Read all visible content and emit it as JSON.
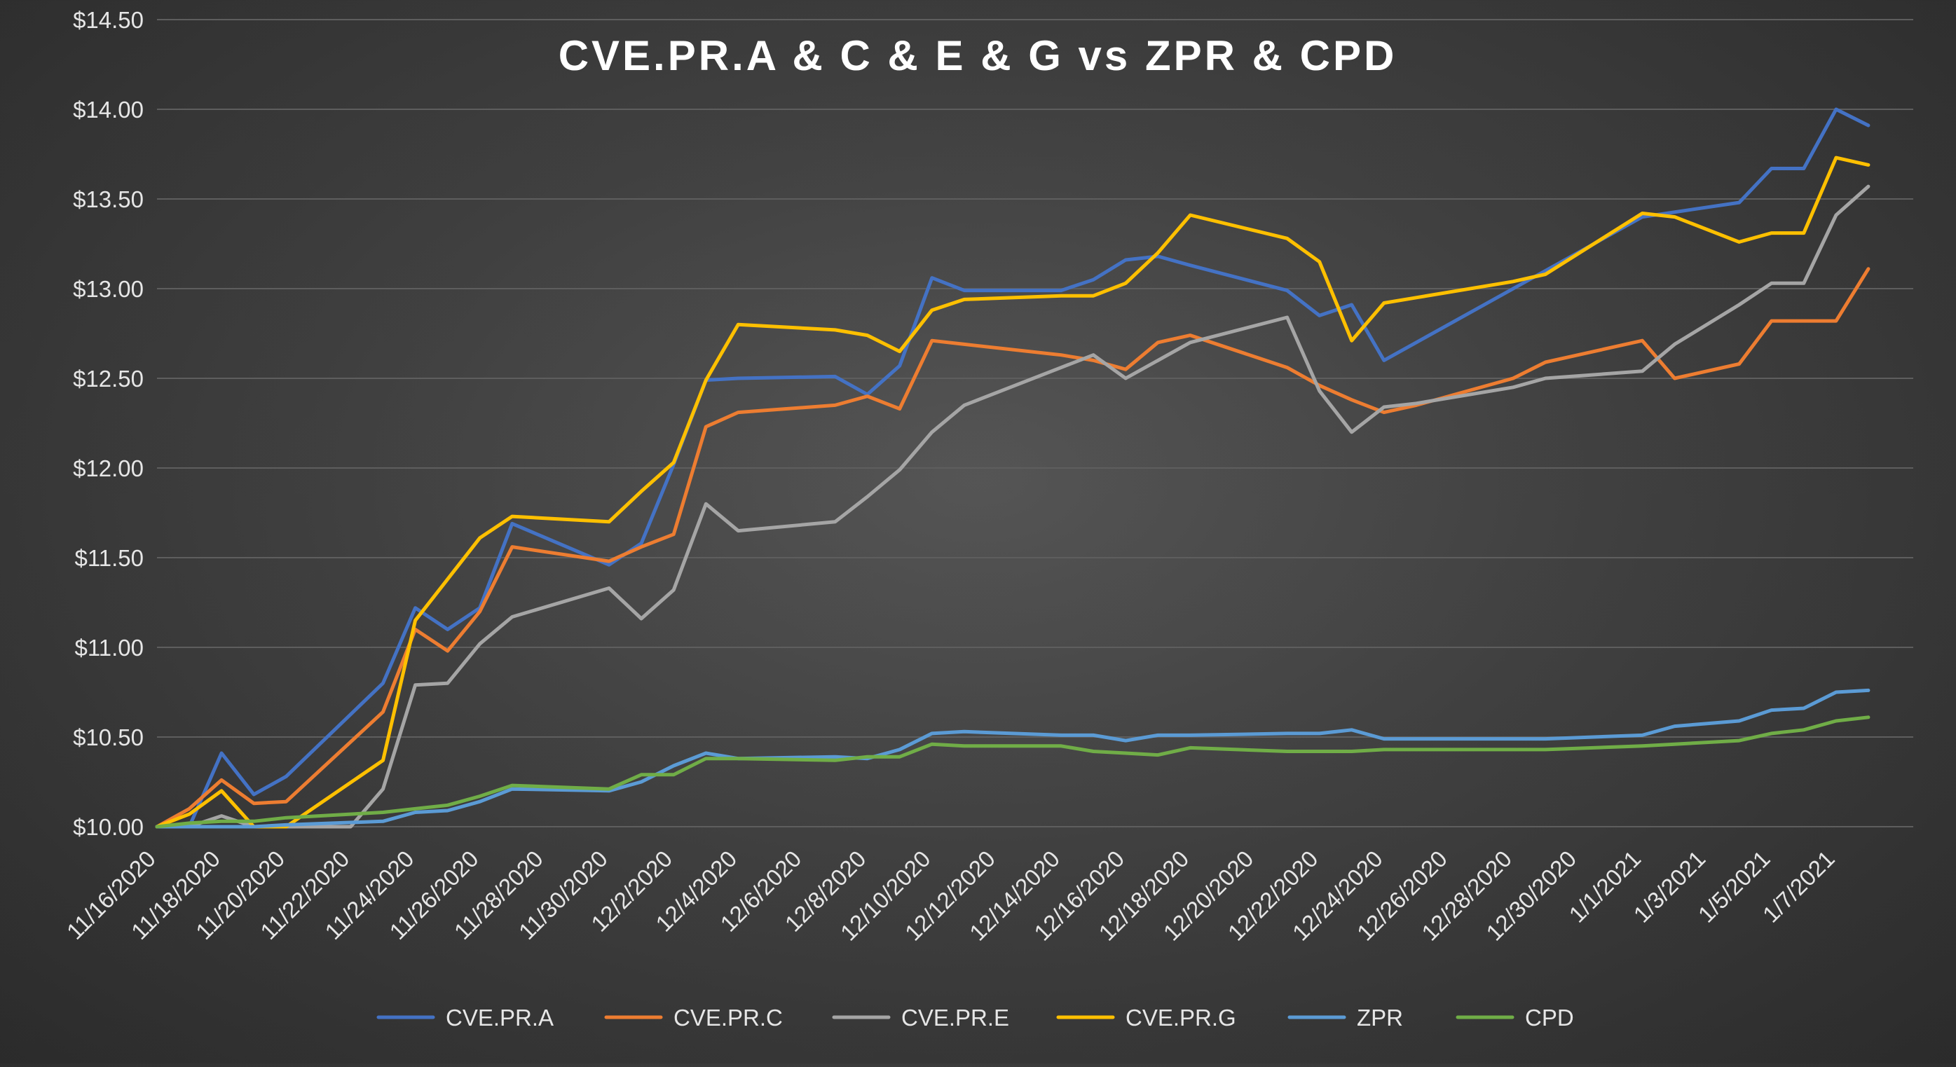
{
  "chart_data": {
    "type": "line",
    "title": "CVE.PR.A & C & E & G vs ZPR & CPD",
    "xlabel": "",
    "ylabel": "",
    "ylim": [
      10.0,
      14.5
    ],
    "y_tick_values": [
      10.0,
      10.5,
      11.0,
      11.5,
      12.0,
      12.5,
      13.0,
      13.5,
      14.0,
      14.5
    ],
    "y_tick_labels": [
      "$10.00",
      "$10.50",
      "$11.00",
      "$11.50",
      "$12.00",
      "$12.50",
      "$13.00",
      "$13.50",
      "$14.00",
      "$14.50"
    ],
    "x_range": [
      0,
      54
    ],
    "x_tick_labels": [
      "11/16/2020",
      "11/18/2020",
      "11/20/2020",
      "11/22/2020",
      "11/24/2020",
      "11/26/2020",
      "11/28/2020",
      "11/30/2020",
      "12/2/2020",
      "12/4/2020",
      "12/6/2020",
      "12/8/2020",
      "12/10/2020",
      "12/12/2020",
      "12/14/2020",
      "12/16/2020",
      "12/18/2020",
      "12/20/2020",
      "12/22/2020",
      "12/24/2020",
      "12/26/2020",
      "12/28/2020",
      "12/30/2020",
      "1/1/2021",
      "1/3/2021",
      "1/5/2021",
      "1/7/2021"
    ],
    "grid": true,
    "legend_position": "bottom",
    "series": [
      {
        "name": "CVE.PR.A",
        "color": "#4472C4",
        "x": [
          0,
          1,
          2,
          3,
          4,
          7,
          8,
          9,
          10,
          11,
          14,
          15,
          16,
          17,
          18,
          21,
          22,
          23,
          24,
          25,
          28,
          29,
          30,
          31,
          32,
          35,
          36,
          37,
          38,
          39,
          42,
          43,
          46,
          49,
          50,
          51,
          52,
          53
        ],
        "values": [
          10.0,
          10.0,
          10.41,
          10.18,
          10.28,
          10.8,
          11.22,
          11.1,
          11.22,
          11.69,
          11.46,
          11.58,
          12.02,
          12.49,
          12.5,
          12.51,
          12.41,
          12.57,
          13.06,
          12.99,
          12.99,
          13.05,
          13.16,
          13.18,
          13.13,
          12.99,
          12.85,
          12.91,
          12.6,
          12.7,
          13.0,
          13.1,
          13.4,
          13.48,
          13.67,
          13.67,
          14.0,
          13.91
        ]
      },
      {
        "name": "CVE.PR.C",
        "color": "#ED7D31",
        "x": [
          0,
          1,
          2,
          3,
          4,
          7,
          8,
          9,
          10,
          11,
          14,
          15,
          16,
          17,
          18,
          21,
          22,
          23,
          24,
          25,
          28,
          29,
          30,
          31,
          32,
          35,
          36,
          37,
          38,
          39,
          42,
          43,
          46,
          47,
          49,
          50,
          51,
          52,
          53
        ],
        "values": [
          10.0,
          10.1,
          10.26,
          10.13,
          10.14,
          10.64,
          11.1,
          10.98,
          11.2,
          11.56,
          11.48,
          11.56,
          11.63,
          12.23,
          12.31,
          12.35,
          12.4,
          12.33,
          12.71,
          12.69,
          12.63,
          12.6,
          12.55,
          12.7,
          12.74,
          12.56,
          12.46,
          12.38,
          12.31,
          12.35,
          12.5,
          12.59,
          12.71,
          12.5,
          12.58,
          12.82,
          12.82,
          12.82,
          13.11
        ]
      },
      {
        "name": "CVE.PR.E",
        "color": "#A5A5A5",
        "x": [
          0,
          1,
          2,
          3,
          4,
          5,
          6,
          7,
          8,
          9,
          10,
          11,
          14,
          15,
          16,
          17,
          18,
          21,
          22,
          23,
          24,
          25,
          28,
          29,
          30,
          31,
          32,
          35,
          36,
          37,
          38,
          39,
          42,
          43,
          46,
          47,
          49,
          50,
          51,
          52,
          53
        ],
        "values": [
          10.0,
          10.0,
          10.06,
          10.0,
          10.0,
          10.0,
          10.0,
          10.21,
          10.79,
          10.8,
          11.02,
          11.17,
          11.33,
          11.16,
          11.32,
          11.8,
          11.65,
          11.7,
          11.84,
          11.99,
          12.2,
          12.35,
          12.56,
          12.63,
          12.5,
          12.6,
          12.7,
          12.84,
          12.43,
          12.2,
          12.34,
          12.36,
          12.45,
          12.5,
          12.54,
          12.69,
          12.91,
          13.03,
          13.03,
          13.41,
          13.57
        ]
      },
      {
        "name": "CVE.PR.G",
        "color": "#FFC000",
        "x": [
          0,
          1,
          2,
          3,
          4,
          7,
          8,
          9,
          10,
          11,
          14,
          15,
          16,
          17,
          18,
          21,
          22,
          23,
          24,
          25,
          28,
          29,
          30,
          31,
          32,
          35,
          36,
          37,
          38,
          39,
          42,
          43,
          46,
          47,
          49,
          50,
          51,
          52,
          53
        ],
        "values": [
          10.0,
          10.07,
          10.2,
          10.0,
          10.0,
          10.37,
          11.15,
          11.38,
          11.61,
          11.73,
          11.7,
          11.87,
          12.03,
          12.49,
          12.8,
          12.77,
          12.74,
          12.65,
          12.88,
          12.94,
          12.96,
          12.96,
          13.03,
          13.2,
          13.41,
          13.28,
          13.15,
          12.71,
          12.92,
          12.95,
          13.04,
          13.08,
          13.42,
          13.4,
          13.26,
          13.31,
          13.31,
          13.73,
          13.69
        ]
      },
      {
        "name": "ZPR",
        "color": "#5B9BD5",
        "x": [
          0,
          1,
          2,
          3,
          4,
          7,
          8,
          9,
          10,
          11,
          14,
          15,
          16,
          17,
          18,
          21,
          22,
          23,
          24,
          25,
          28,
          29,
          30,
          31,
          32,
          35,
          36,
          37,
          38,
          39,
          42,
          43,
          46,
          47,
          49,
          50,
          51,
          52,
          53
        ],
        "values": [
          10.0,
          10.0,
          10.0,
          10.0,
          10.01,
          10.03,
          10.08,
          10.09,
          10.14,
          10.21,
          10.2,
          10.25,
          10.34,
          10.41,
          10.38,
          10.39,
          10.38,
          10.43,
          10.52,
          10.53,
          10.51,
          10.51,
          10.48,
          10.51,
          10.51,
          10.52,
          10.52,
          10.54,
          10.49,
          10.49,
          10.49,
          10.49,
          10.51,
          10.56,
          10.59,
          10.65,
          10.66,
          10.75,
          10.76
        ]
      },
      {
        "name": "CPD",
        "color": "#70AD47",
        "x": [
          0,
          1,
          2,
          3,
          4,
          7,
          8,
          9,
          10,
          11,
          14,
          15,
          16,
          17,
          18,
          21,
          22,
          23,
          24,
          25,
          28,
          29,
          30,
          31,
          32,
          35,
          36,
          37,
          38,
          39,
          42,
          43,
          46,
          47,
          49,
          50,
          51,
          52,
          53
        ],
        "values": [
          10.0,
          10.02,
          10.03,
          10.03,
          10.05,
          10.08,
          10.1,
          10.12,
          10.17,
          10.23,
          10.21,
          10.29,
          10.29,
          10.38,
          10.38,
          10.37,
          10.39,
          10.39,
          10.46,
          10.45,
          10.45,
          10.42,
          10.41,
          10.4,
          10.44,
          10.42,
          10.42,
          10.42,
          10.43,
          10.43,
          10.43,
          10.43,
          10.45,
          10.46,
          10.48,
          10.52,
          10.54,
          10.59,
          10.61
        ]
      }
    ]
  }
}
